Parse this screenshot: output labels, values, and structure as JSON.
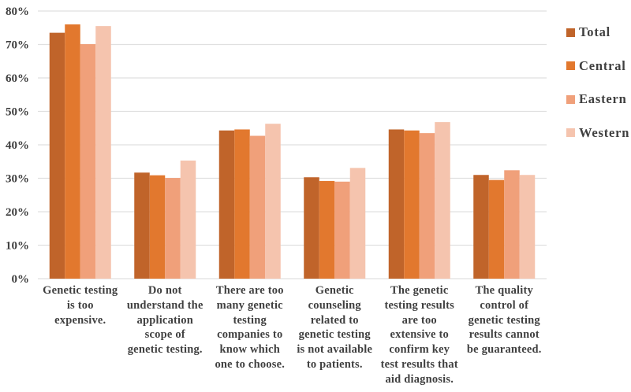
{
  "chart_data": {
    "type": "bar",
    "title": "",
    "xlabel": "",
    "ylabel": "",
    "ylim": [
      0,
      80
    ],
    "yticks": [
      "0%",
      "10%",
      "20%",
      "30%",
      "40%",
      "50%",
      "60%",
      "70%",
      "80%"
    ],
    "grid": true,
    "legend_position": "right",
    "categories": [
      "Genetic testing is too expensive.",
      "Do not understand the application scope of genetic testing.",
      "There are too many genetic testing companies to know which one to choose.",
      "Genetic counseling related to genetic testing is not available to patients.",
      "The genetic testing results are too extensive to confirm key test results that aid diagnosis.",
      "The quality control of genetic testing results cannot be guaranteed."
    ],
    "category_lines": [
      [
        "Genetic testing",
        "is too",
        "expensive."
      ],
      [
        "Do not",
        "understand the",
        "application",
        "scope of",
        "genetic testing."
      ],
      [
        "There are too",
        "many genetic",
        "testing",
        "companies to",
        "know which",
        "one to choose."
      ],
      [
        "Genetic",
        "counseling",
        "related to",
        "genetic testing",
        "is not available",
        "to patients."
      ],
      [
        "The genetic",
        "testing results",
        "are too",
        "extensive to",
        "confirm key",
        "test results that",
        "aid diagnosis."
      ],
      [
        "The quality",
        "control of",
        "genetic testing",
        "results cannot",
        "be guaranteed."
      ]
    ],
    "series": [
      {
        "name": "Total",
        "color": "#C0642A",
        "values": [
          73.5,
          31.7,
          44.3,
          30.3,
          44.6,
          31.0
        ]
      },
      {
        "name": "Central",
        "color": "#E2782E",
        "values": [
          76.0,
          30.9,
          44.6,
          29.2,
          44.3,
          29.5
        ]
      },
      {
        "name": "Eastern",
        "color": "#F0A07A",
        "values": [
          70.1,
          30.1,
          42.7,
          29.0,
          43.5,
          32.4
        ]
      },
      {
        "name": "Western",
        "color": "#F5C4AE",
        "values": [
          75.5,
          35.3,
          46.3,
          33.1,
          46.8,
          31.0
        ]
      }
    ]
  }
}
